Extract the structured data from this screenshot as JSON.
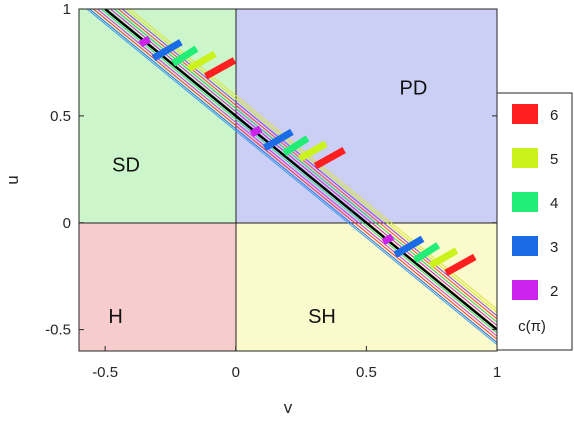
{
  "chart_data": {
    "type": "line",
    "xlabel": "v",
    "ylabel": "u",
    "xlim": [
      -0.6,
      1.0
    ],
    "ylim": [
      -0.6,
      1.0
    ],
    "xticks": [
      {
        "v": -0.5,
        "label": "-0.5"
      },
      {
        "v": 0,
        "label": "0"
      },
      {
        "v": 0.5,
        "label": "0.5"
      },
      {
        "v": 1,
        "label": "1"
      }
    ],
    "yticks": [
      {
        "v": -0.5,
        "label": "-0.5"
      },
      {
        "v": 0,
        "label": "0"
      },
      {
        "v": 0.5,
        "label": "0.5"
      },
      {
        "v": 1,
        "label": "1"
      }
    ],
    "regions": [
      {
        "label": "SD",
        "x": [
          -0.6,
          0
        ],
        "y": [
          0,
          1
        ],
        "color": "#ccf5cc",
        "label_at": [
          -0.42,
          0.24
        ]
      },
      {
        "label": "PD",
        "x": [
          0,
          1
        ],
        "y": [
          0,
          1
        ],
        "color": "#cccff5",
        "label_at": [
          0.68,
          0.6
        ]
      },
      {
        "label": "H",
        "x": [
          -0.6,
          0
        ],
        "y": [
          -0.6,
          0
        ],
        "color": "#f7cccc",
        "label_at": [
          -0.46,
          -0.47
        ]
      },
      {
        "label": "SH",
        "x": [
          0,
          1
        ],
        "y": [
          -0.6,
          0
        ],
        "color": "#fafacc",
        "label_at": [
          0.33,
          -0.47
        ]
      }
    ],
    "main_line": {
      "x": [
        -0.5,
        1.0
      ],
      "y": [
        1.0,
        -0.5
      ],
      "color": "#000000"
    },
    "thin_lines": [
      {
        "offset": -0.07,
        "color": "#3aa0f0"
      },
      {
        "offset": -0.06,
        "color": "#2f6fdd"
      },
      {
        "offset": -0.045,
        "color": "#ff3333"
      },
      {
        "offset": -0.03,
        "color": "#dd33dd"
      },
      {
        "offset": -0.015,
        "color": "#33dd88"
      },
      {
        "offset": 0.02,
        "color": "#cc22cc"
      },
      {
        "offset": 0.035,
        "color": "#33cc66"
      },
      {
        "offset": 0.05,
        "color": "#ff4444"
      },
      {
        "offset": 0.065,
        "color": "#9a3de0"
      },
      {
        "offset": 0.08,
        "color": "#ccee22"
      },
      {
        "offset": 0.095,
        "color": "#e0e040"
      }
    ],
    "series": [
      {
        "name": "6",
        "color": "#ff1f1f",
        "values": [
          {
            "x1": -0.115,
            "y1": 0.685,
            "x2": -0.005,
            "y2": 0.76
          },
          {
            "x1": 0.305,
            "y1": 0.265,
            "x2": 0.415,
            "y2": 0.34
          },
          {
            "x1": 0.805,
            "y1": -0.235,
            "x2": 0.915,
            "y2": -0.16
          }
        ]
      },
      {
        "name": "5",
        "color": "#ccf21c",
        "values": [
          {
            "x1": -0.18,
            "y1": 0.72,
            "x2": -0.08,
            "y2": 0.79
          },
          {
            "x1": 0.245,
            "y1": 0.3,
            "x2": 0.345,
            "y2": 0.37
          },
          {
            "x1": 0.745,
            "y1": -0.2,
            "x2": 0.845,
            "y2": -0.13
          }
        ]
      },
      {
        "name": "4",
        "color": "#22ee77",
        "values": [
          {
            "x1": -0.24,
            "y1": 0.745,
            "x2": -0.15,
            "y2": 0.815
          },
          {
            "x1": 0.185,
            "y1": 0.325,
            "x2": 0.275,
            "y2": 0.395
          },
          {
            "x1": 0.685,
            "y1": -0.175,
            "x2": 0.775,
            "y2": -0.105
          }
        ]
      },
      {
        "name": "3",
        "color": "#1a6be6",
        "values": [
          {
            "x1": -0.315,
            "y1": 0.77,
            "x2": -0.21,
            "y2": 0.845
          },
          {
            "x1": 0.11,
            "y1": 0.35,
            "x2": 0.215,
            "y2": 0.425
          },
          {
            "x1": 0.61,
            "y1": -0.15,
            "x2": 0.715,
            "y2": -0.075
          }
        ]
      },
      {
        "name": "2",
        "color": "#cc22ee",
        "values": [
          {
            "x1": -0.365,
            "y1": 0.835,
            "x2": -0.33,
            "y2": 0.86
          },
          {
            "x1": 0.06,
            "y1": 0.415,
            "x2": 0.095,
            "y2": 0.44
          },
          {
            "x1": 0.565,
            "y1": -0.09,
            "x2": 0.6,
            "y2": -0.065
          }
        ]
      }
    ],
    "legend": {
      "placement": "right",
      "title": "c(π)",
      "entries": [
        {
          "label": "6",
          "color": "#ff1f1f"
        },
        {
          "label": "5",
          "color": "#ccf21c"
        },
        {
          "label": "4",
          "color": "#22ee77"
        },
        {
          "label": "3",
          "color": "#1a6be6"
        },
        {
          "label": "2",
          "color": "#cc22ee"
        }
      ]
    }
  }
}
